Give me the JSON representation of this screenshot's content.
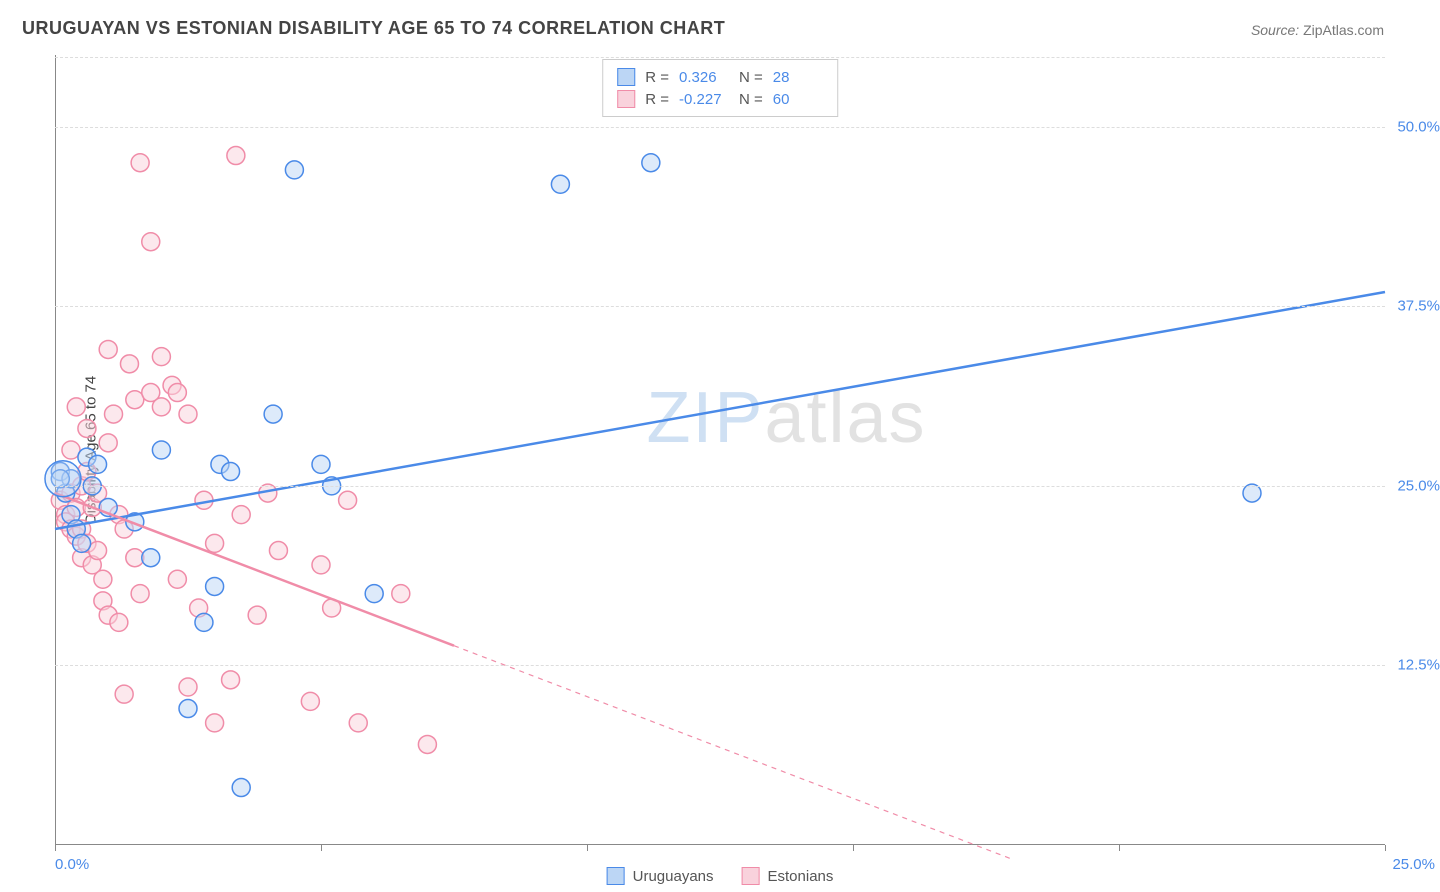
{
  "title": "URUGUAYAN VS ESTONIAN DISABILITY AGE 65 TO 74 CORRELATION CHART",
  "source_label": "Source:",
  "source_value": "ZipAtlas.com",
  "y_axis_label": "Disability Age 65 to 74",
  "watermark_a": "ZIP",
  "watermark_b": "atlas",
  "chart": {
    "type": "scatter",
    "background_color": "#ffffff",
    "grid_color": "#dddddd",
    "axis_color": "#888888",
    "tick_label_color": "#4a8ae8",
    "xlim": [
      0.0,
      25.0
    ],
    "ylim": [
      0.0,
      55.0
    ],
    "y_ticks": [
      12.5,
      25.0,
      37.5,
      50.0
    ],
    "y_tick_labels": [
      "12.5%",
      "25.0%",
      "37.5%",
      "50.0%"
    ],
    "x_ticks": [
      0,
      5,
      10,
      15,
      20,
      25
    ],
    "x_min_label": "0.0%",
    "x_max_label": "25.0%",
    "marker_radius": 9,
    "marker_stroke_width": 1.5,
    "marker_fill_opacity": 0.25,
    "trend_line_width": 2.5,
    "series": [
      {
        "name": "Uruguayans",
        "color": "#4a8ae8",
        "fill": "#bcd6f5",
        "R": "0.326",
        "N": "28",
        "trend": {
          "x1": 0.0,
          "y1": 22.0,
          "x2": 25.0,
          "y2": 38.5,
          "dashed_from_x": null
        },
        "points": [
          [
            0.1,
            26.0
          ],
          [
            0.2,
            24.5
          ],
          [
            0.3,
            23.0
          ],
          [
            0.4,
            22.0
          ],
          [
            0.5,
            21.0
          ],
          [
            0.6,
            27.0
          ],
          [
            0.7,
            25.0
          ],
          [
            0.8,
            26.5
          ],
          [
            1.0,
            23.5
          ],
          [
            0.3,
            25.5
          ],
          [
            1.5,
            22.5
          ],
          [
            1.8,
            20.0
          ],
          [
            2.0,
            27.5
          ],
          [
            2.5,
            9.5
          ],
          [
            2.8,
            15.5
          ],
          [
            3.0,
            18.0
          ],
          [
            3.1,
            26.5
          ],
          [
            3.3,
            26.0
          ],
          [
            3.5,
            4.0
          ],
          [
            4.1,
            30.0
          ],
          [
            4.5,
            47.0
          ],
          [
            5.0,
            26.5
          ],
          [
            5.2,
            25.0
          ],
          [
            6.0,
            17.5
          ],
          [
            9.5,
            46.0
          ],
          [
            11.2,
            47.5
          ],
          [
            22.5,
            24.5
          ],
          [
            0.1,
            25.5
          ]
        ]
      },
      {
        "name": "Estonians",
        "color": "#f08ca8",
        "fill": "#f9d2dc",
        "R": "-0.227",
        "N": "60",
        "trend": {
          "x1": 0.0,
          "y1": 24.5,
          "x2": 18.0,
          "y2": -1.0,
          "dashed_from_x": 7.5
        },
        "points": [
          [
            0.1,
            24.0
          ],
          [
            0.2,
            23.0
          ],
          [
            0.2,
            22.5
          ],
          [
            0.3,
            22.0
          ],
          [
            0.3,
            24.5
          ],
          [
            0.4,
            23.5
          ],
          [
            0.4,
            21.5
          ],
          [
            0.5,
            20.0
          ],
          [
            0.5,
            22.0
          ],
          [
            0.5,
            25.0
          ],
          [
            0.6,
            26.0
          ],
          [
            0.6,
            21.0
          ],
          [
            0.7,
            19.5
          ],
          [
            0.7,
            23.5
          ],
          [
            0.8,
            24.5
          ],
          [
            0.8,
            20.5
          ],
          [
            0.9,
            18.5
          ],
          [
            0.9,
            17.0
          ],
          [
            1.0,
            34.5
          ],
          [
            1.0,
            28.0
          ],
          [
            1.0,
            16.0
          ],
          [
            1.1,
            30.0
          ],
          [
            1.2,
            15.5
          ],
          [
            1.2,
            23.0
          ],
          [
            1.3,
            22.0
          ],
          [
            1.4,
            33.5
          ],
          [
            1.5,
            31.0
          ],
          [
            1.5,
            20.0
          ],
          [
            1.6,
            47.5
          ],
          [
            1.6,
            17.5
          ],
          [
            1.8,
            31.5
          ],
          [
            1.8,
            42.0
          ],
          [
            2.0,
            30.5
          ],
          [
            2.0,
            34.0
          ],
          [
            2.2,
            32.0
          ],
          [
            2.3,
            18.5
          ],
          [
            2.3,
            31.5
          ],
          [
            2.5,
            11.0
          ],
          [
            2.5,
            30.0
          ],
          [
            2.7,
            16.5
          ],
          [
            2.8,
            24.0
          ],
          [
            0.4,
            30.5
          ],
          [
            3.0,
            8.5
          ],
          [
            3.0,
            21.0
          ],
          [
            3.3,
            11.5
          ],
          [
            3.4,
            48.0
          ],
          [
            3.5,
            23.0
          ],
          [
            3.8,
            16.0
          ],
          [
            4.0,
            24.5
          ],
          [
            4.2,
            20.5
          ],
          [
            1.3,
            10.5
          ],
          [
            4.8,
            10.0
          ],
          [
            5.0,
            19.5
          ],
          [
            5.2,
            16.5
          ],
          [
            5.5,
            24.0
          ],
          [
            5.7,
            8.5
          ],
          [
            0.3,
            27.5
          ],
          [
            6.5,
            17.5
          ],
          [
            7.0,
            7.0
          ],
          [
            0.6,
            29.0
          ]
        ]
      }
    ],
    "legend_bottom": [
      {
        "label": "Uruguayans",
        "fill": "#bcd6f5",
        "stroke": "#4a8ae8"
      },
      {
        "label": "Estonians",
        "fill": "#f9d2dc",
        "stroke": "#f08ca8"
      }
    ]
  }
}
